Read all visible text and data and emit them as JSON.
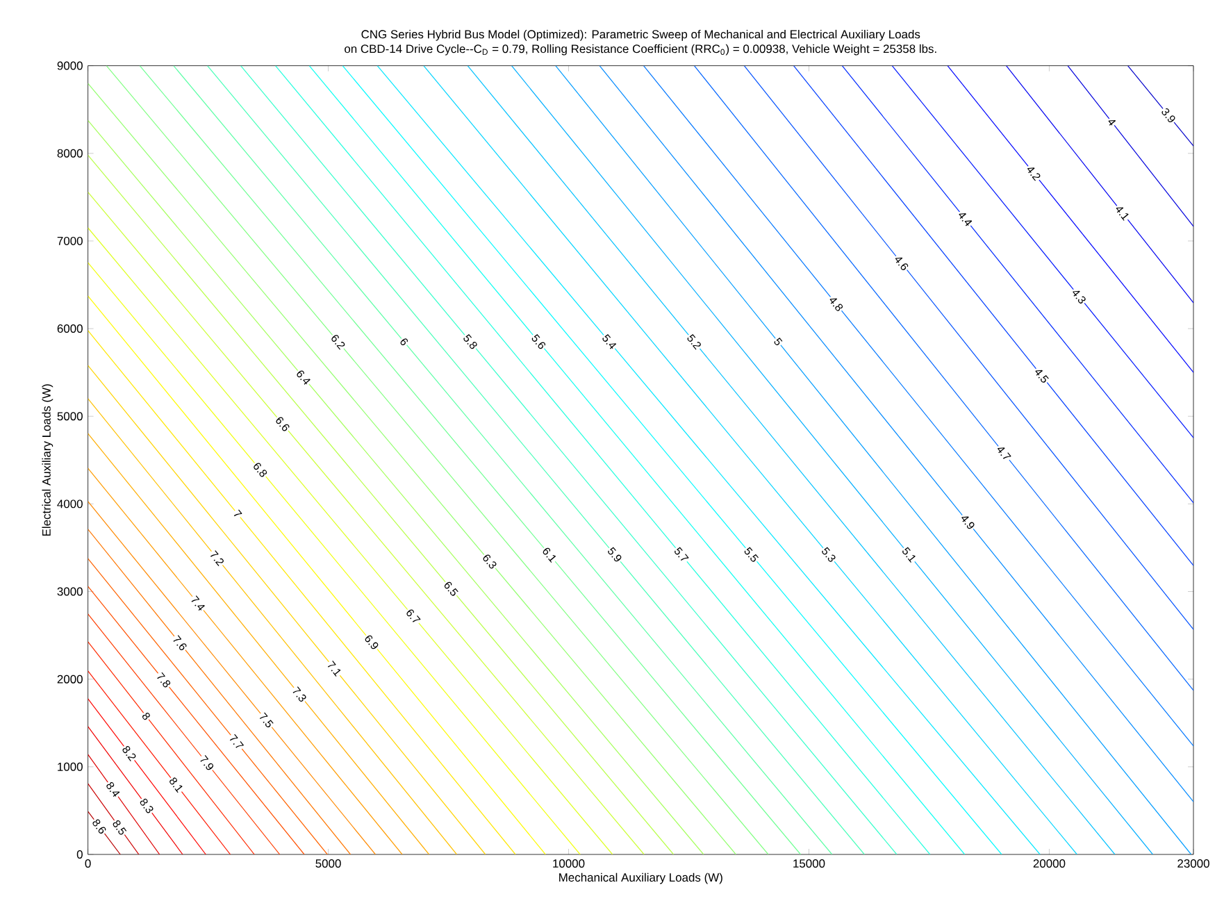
{
  "chart_data": {
    "type": "line",
    "title": "CNG Series Hybrid Bus Model (Optimized): Parametric Sweep of Mechanical and Electrical Auxiliary Loads",
    "subtitle": "on CBD-14 Drive Cycle--C$_{D}$ = 0.79, Rolling Resistance Coefficient (RRC$_{0}$) = 0.00938, Vehicle Weight = 25358 lbs.",
    "xlabel": "Mechanical Auxiliary Loads (W)",
    "ylabel": "Electrical Auxiliary Loads (W)",
    "xlim": [
      0,
      23000
    ],
    "ylim": [
      0,
      9000
    ],
    "xticks": [
      0,
      5000,
      10000,
      15000,
      20000,
      23000
    ],
    "yticks": [
      0,
      1000,
      2000,
      3000,
      4000,
      5000,
      6000,
      7000,
      8000,
      9000
    ],
    "series": [
      {
        "name": "3.9",
        "color": "#0000cb",
        "x": [
          21635,
          23000
        ],
        "values": [
          9000,
          8085
        ]
      },
      {
        "name": "4",
        "color": "#0000de",
        "x": [
          20385,
          23000
        ],
        "values": [
          9000,
          7166
        ]
      },
      {
        "name": "4.1",
        "color": "#0000f1",
        "x": [
          19106,
          23000
        ],
        "values": [
          9000,
          6294
        ]
      },
      {
        "name": "4.2",
        "color": "#0005ff",
        "x": [
          17885,
          23000
        ],
        "values": [
          9000,
          5501
        ]
      },
      {
        "name": "4.3",
        "color": "#0018ff",
        "x": [
          16731,
          23000
        ],
        "values": [
          9000,
          4756
        ]
      },
      {
        "name": "4.4",
        "color": "#002aff",
        "x": [
          15692,
          23000
        ],
        "values": [
          9000,
          4011
        ]
      },
      {
        "name": "4.5",
        "color": "#003dff",
        "x": [
          14683,
          23000
        ],
        "values": [
          9000,
          3297
        ]
      },
      {
        "name": "4.6",
        "color": "#0050ff",
        "x": [
          13654,
          23000
        ],
        "values": [
          9000,
          2568
        ]
      },
      {
        "name": "4.7",
        "color": "#0063ff",
        "x": [
          12615,
          23000
        ],
        "values": [
          9000,
          1871
        ]
      },
      {
        "name": "4.8",
        "color": "#0076ff",
        "x": [
          11561,
          23000
        ],
        "values": [
          9000,
          1237
        ]
      },
      {
        "name": "4.9",
        "color": "#0089ff",
        "x": [
          10645,
          23000
        ],
        "values": [
          9000,
          602
        ]
      },
      {
        "name": "5",
        "color": "#009cff",
        "x": [
          9730,
          22952
        ],
        "values": [
          9000,
          0
        ]
      },
      {
        "name": "5.1",
        "color": "#00aeff",
        "x": [
          8815,
          22154
        ],
        "values": [
          9000,
          0
        ]
      },
      {
        "name": "5.2",
        "color": "#00c1ff",
        "x": [
          7900,
          21365
        ],
        "values": [
          9000,
          0
        ]
      },
      {
        "name": "5.3",
        "color": "#00d4ff",
        "x": [
          6985,
          20577
        ],
        "values": [
          9000,
          0
        ]
      },
      {
        "name": "5.4",
        "color": "#00e7ff",
        "x": [
          6021,
          19808
        ],
        "values": [
          9000,
          0
        ]
      },
      {
        "name": "5.5",
        "color": "#00faff",
        "x": [
          5299,
          19010
        ],
        "values": [
          9000,
          0
        ]
      },
      {
        "name": "5.6",
        "color": "#0efff1",
        "x": [
          4605,
          18240
        ],
        "values": [
          9000,
          0
        ]
      },
      {
        "name": "5.7",
        "color": "#21ffde",
        "x": [
          3902,
          17519
        ],
        "values": [
          9000,
          0
        ]
      },
      {
        "name": "5.8",
        "color": "#34ffcb",
        "x": [
          3179,
          16827
        ],
        "values": [
          9000,
          0
        ]
      },
      {
        "name": "5.9",
        "color": "#47ffb8",
        "x": [
          2486,
          16154
        ],
        "values": [
          9000,
          0
        ]
      },
      {
        "name": "6",
        "color": "#5affa5",
        "x": [
          1782,
          15481
        ],
        "values": [
          9000,
          0
        ]
      },
      {
        "name": "6.1",
        "color": "#6dff92",
        "x": [
          1079,
          14827
        ],
        "values": [
          9000,
          0
        ]
      },
      {
        "name": "6.2",
        "color": "#80ff80",
        "x": [
          385,
          14154
        ],
        "values": [
          9000,
          0
        ]
      },
      {
        "name": "6.3",
        "color": "#92ff6d",
        "x": [
          0,
          13481
        ],
        "values": [
          8798,
          0
        ]
      },
      {
        "name": "6.4",
        "color": "#a5ff5a",
        "x": [
          0,
          12808
        ],
        "values": [
          8375,
          0
        ]
      },
      {
        "name": "6.5",
        "color": "#b8ff47",
        "x": [
          0,
          12183
        ],
        "values": [
          7979,
          0
        ]
      },
      {
        "name": "6.6",
        "color": "#cbff34",
        "x": [
          0,
          11570
        ],
        "values": [
          7557,
          0
        ]
      },
      {
        "name": "6.7",
        "color": "#deff21",
        "x": [
          0,
          10913
        ],
        "values": [
          7150,
          0
        ]
      },
      {
        "name": "6.8",
        "color": "#f1ff0e",
        "x": [
          0,
          10240
        ],
        "values": [
          6753,
          0
        ]
      },
      {
        "name": "6.9",
        "color": "#fffa00",
        "x": [
          0,
          9519
        ],
        "values": [
          6373,
          0
        ]
      },
      {
        "name": "7",
        "color": "#ffe700",
        "x": [
          0,
          8894
        ],
        "values": [
          5977,
          0
        ]
      },
      {
        "name": "7.1",
        "color": "#ffd400",
        "x": [
          0,
          8269
        ],
        "values": [
          5580,
          0
        ]
      },
      {
        "name": "7.2",
        "color": "#ffc100",
        "x": [
          0,
          7673
        ],
        "values": [
          5200,
          0
        ]
      },
      {
        "name": "7.3",
        "color": "#ffae00",
        "x": [
          0,
          7096
        ],
        "values": [
          4803,
          0
        ]
      },
      {
        "name": "7.4",
        "color": "#ff9c00",
        "x": [
          0,
          6538
        ],
        "values": [
          4407,
          0
        ]
      },
      {
        "name": "7.5",
        "color": "#ff8900",
        "x": [
          0,
          5981
        ],
        "values": [
          4027,
          0
        ]
      },
      {
        "name": "7.6",
        "color": "#ff7600",
        "x": [
          0,
          5462
        ],
        "values": [
          3710,
          0
        ]
      },
      {
        "name": "7.7",
        "color": "#ff6300",
        "x": [
          0,
          4981
        ],
        "values": [
          3376,
          0
        ]
      },
      {
        "name": "7.8",
        "color": "#ff5000",
        "x": [
          0,
          4500
        ],
        "values": [
          3059,
          0
        ]
      },
      {
        "name": "7.9",
        "color": "#ff3d00",
        "x": [
          0,
          3990
        ],
        "values": [
          2743,
          0
        ]
      },
      {
        "name": "8",
        "color": "#ff2a00",
        "x": [
          0,
          3462
        ],
        "values": [
          2426,
          0
        ]
      },
      {
        "name": "8.1",
        "color": "#ff1800",
        "x": [
          0,
          2962
        ],
        "values": [
          2093,
          0
        ]
      },
      {
        "name": "8.2",
        "color": "#ff0500",
        "x": [
          0,
          2452
        ],
        "values": [
          1776,
          0
        ]
      },
      {
        "name": "8.3",
        "color": "#f10000",
        "x": [
          0,
          1971
        ],
        "values": [
          1459,
          0
        ]
      },
      {
        "name": "8.4",
        "color": "#de0000",
        "x": [
          0,
          1490
        ],
        "values": [
          1141,
          0
        ]
      },
      {
        "name": "8.5",
        "color": "#cb0000",
        "x": [
          0,
          1058
        ],
        "values": [
          808,
          0
        ]
      },
      {
        "name": "8.6",
        "color": "#b80000",
        "x": [
          0,
          673
        ],
        "values": [
          491,
          0
        ]
      }
    ]
  }
}
